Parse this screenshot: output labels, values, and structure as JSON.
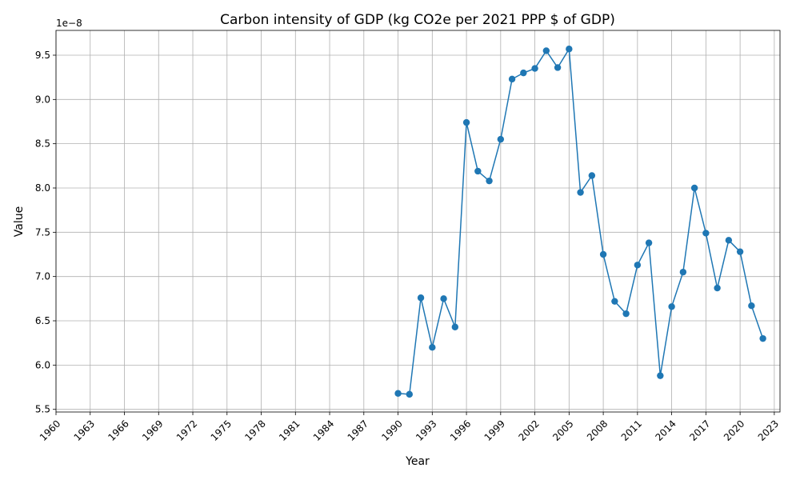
{
  "chart_data": {
    "type": "line",
    "title": "Carbon intensity of GDP (kg CO2e per 2021 PPP $ of GDP)",
    "xlabel": "Year",
    "ylabel": "Value",
    "offset_text": "1e−8",
    "scale": 1e-08,
    "xlim": [
      1960,
      2023.5
    ],
    "ylim": [
      5.47e-08,
      9.78e-08
    ],
    "x_ticks": [
      1960,
      1963,
      1966,
      1969,
      1972,
      1975,
      1978,
      1981,
      1984,
      1987,
      1990,
      1993,
      1996,
      1999,
      2002,
      2005,
      2008,
      2011,
      2014,
      2017,
      2020,
      2023
    ],
    "y_ticks": [
      5.5e-08,
      6e-08,
      6.5e-08,
      7e-08,
      7.5e-08,
      8e-08,
      8.5e-08,
      9e-08,
      9.5e-08
    ],
    "y_tick_labels": [
      "5.5",
      "6.0",
      "6.5",
      "7.0",
      "7.5",
      "8.0",
      "8.5",
      "9.0",
      "9.5"
    ],
    "grid": true,
    "color": "#1f77b4",
    "series": [
      {
        "x": [
          1990,
          1991,
          1992,
          1993,
          1994,
          1995,
          1996,
          1997,
          1998,
          1999,
          2000,
          2001,
          2002,
          2003,
          2004,
          2005,
          2006,
          2007,
          2008,
          2009,
          2010,
          2011,
          2012,
          2013,
          2014,
          2015,
          2016,
          2017,
          2018,
          2019,
          2020,
          2021,
          2022
        ],
        "y": [
          5.68e-08,
          5.67e-08,
          6.76e-08,
          6.2e-08,
          6.75e-08,
          6.43e-08,
          8.74e-08,
          8.19e-08,
          8.08e-08,
          8.55e-08,
          9.23e-08,
          9.3e-08,
          9.35e-08,
          9.55e-08,
          9.36e-08,
          9.57e-08,
          7.95e-08,
          8.14e-08,
          7.25e-08,
          6.72e-08,
          6.58e-08,
          7.13e-08,
          7.38e-08,
          5.88e-08,
          6.66e-08,
          7.05e-08,
          8e-08,
          7.49e-08,
          6.87e-08,
          7.41e-08,
          7.28e-08,
          6.67e-08,
          6.3e-08
        ]
      }
    ]
  }
}
